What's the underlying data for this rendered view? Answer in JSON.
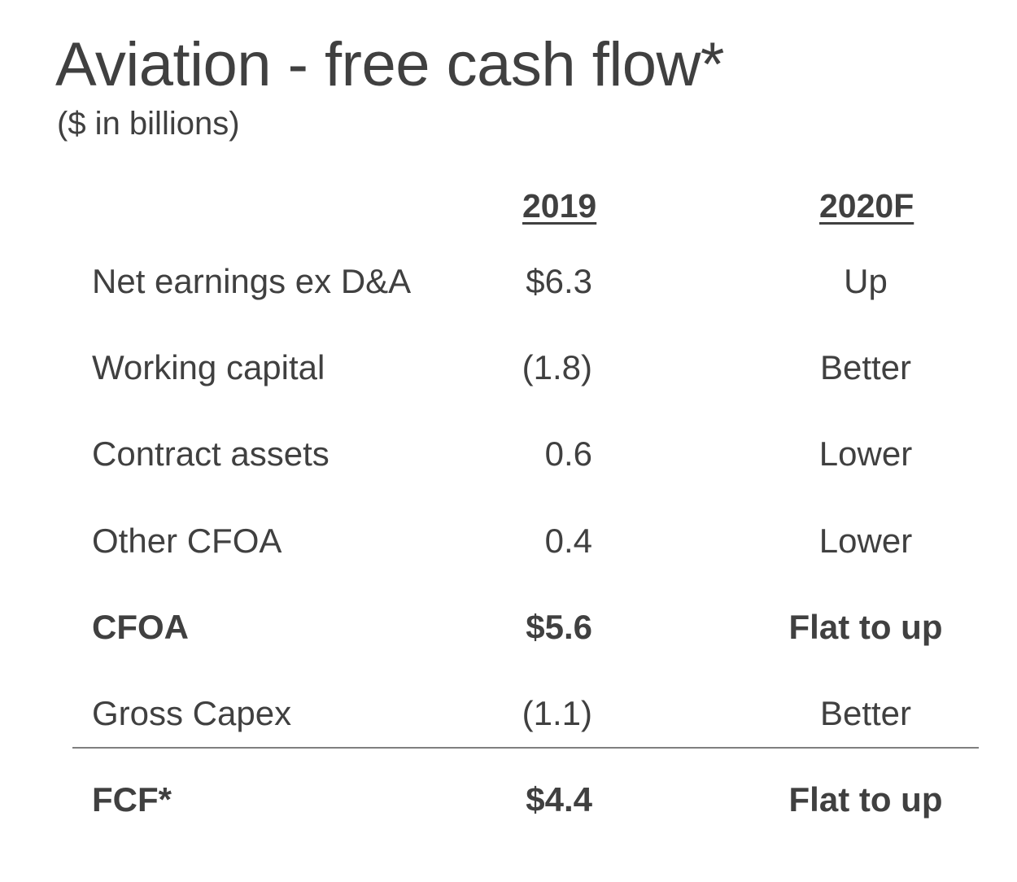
{
  "title": "Aviation - free cash flow*",
  "subtitle": "($ in billions)",
  "columns": {
    "y2019": "2019",
    "y2020": "2020F"
  },
  "rows": [
    {
      "label": "Net earnings ex D&A",
      "v2019": "$6.3",
      "v2020": "Up",
      "bold": false
    },
    {
      "label": "Working capital",
      "v2019": "(1.8)",
      "v2020": "Better",
      "bold": false
    },
    {
      "label": "Contract assets",
      "v2019": "0.6",
      "v2020": "Lower",
      "bold": false
    },
    {
      "label": "Other CFOA",
      "v2019": "0.4",
      "v2020": "Lower",
      "bold": false
    },
    {
      "label": "CFOA",
      "v2019": "$5.6",
      "v2020": "Flat to up",
      "bold": true
    },
    {
      "label": "Gross Capex",
      "v2019": "(1.1)",
      "v2020": "Better",
      "bold": false
    },
    {
      "label": "FCF*",
      "v2019": "$4.4",
      "v2020": "Flat to up",
      "bold": true
    }
  ],
  "colors": {
    "text": "#404040",
    "divider": "#7f7f7f"
  }
}
